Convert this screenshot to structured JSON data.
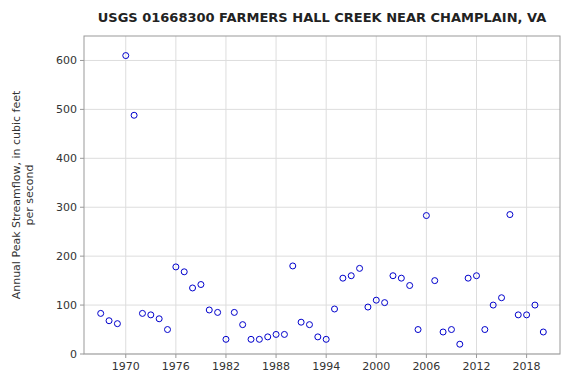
{
  "chart_data": {
    "type": "scatter",
    "title": "USGS 01668300 FARMERS HALL CREEK NEAR CHAMPLAIN, VA",
    "ylabel": "Annual Peak Streamflow, in cubic feet\nper second",
    "x": [
      1967,
      1968,
      1969,
      1970,
      1971,
      1972,
      1973,
      1974,
      1975,
      1976,
      1977,
      1978,
      1979,
      1980,
      1981,
      1982,
      1983,
      1984,
      1985,
      1986,
      1987,
      1988,
      1989,
      1990,
      1991,
      1992,
      1993,
      1994,
      1995,
      1996,
      1997,
      1998,
      1999,
      2000,
      2001,
      2002,
      2003,
      2004,
      2005,
      2006,
      2007,
      2008,
      2009,
      2010,
      2011,
      2012,
      2013,
      2014,
      2015,
      2016,
      2017,
      2018,
      2019,
      2020
    ],
    "values": [
      83,
      68,
      62,
      610,
      488,
      83,
      80,
      72,
      50,
      178,
      168,
      135,
      142,
      90,
      85,
      30,
      85,
      60,
      30,
      30,
      35,
      40,
      40,
      180,
      65,
      60,
      35,
      30,
      92,
      155,
      160,
      175,
      96,
      110,
      105,
      160,
      155,
      140,
      50,
      283,
      150,
      45,
      50,
      20,
      155,
      160,
      50,
      100,
      115,
      285,
      80,
      80,
      100,
      45
    ],
    "color": "#0000CC",
    "marker": "open-circle",
    "xlim": [
      1965,
      2022
    ],
    "ylim": [
      0,
      650
    ],
    "xticks": [
      1970,
      1976,
      1982,
      1988,
      1994,
      2000,
      2006,
      2012,
      2018
    ],
    "yticks": [
      0,
      100,
      200,
      300,
      400,
      500,
      600
    ],
    "grid": true
  }
}
